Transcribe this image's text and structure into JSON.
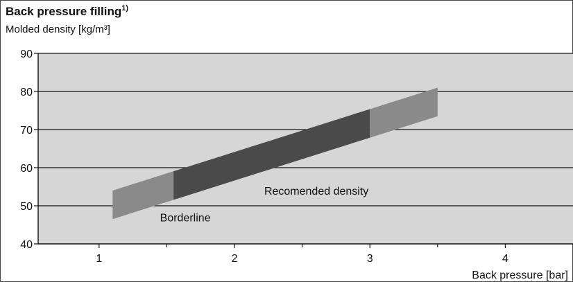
{
  "chart_data": {
    "type": "area",
    "title": "Back pressure filling",
    "title_superscript": "1)",
    "ylabel": "Molded density [kg/m³]",
    "xlabel": "Back pressure [bar]",
    "xlim": [
      0.55,
      4.5
    ],
    "ylim": [
      40,
      90
    ],
    "x_ticks": [
      1,
      2,
      3,
      4
    ],
    "y_ticks": [
      40,
      50,
      60,
      70,
      80,
      90
    ],
    "grid": "horizontal",
    "background_color": "#d6d6d6",
    "band": {
      "x": [
        1.1,
        3.5
      ],
      "upper": [
        54,
        81
      ],
      "lower": [
        46.5,
        73.5
      ]
    },
    "regions": [
      {
        "name": "Borderline",
        "x_range": [
          1.1,
          1.55
        ],
        "color": "#8a8a8a"
      },
      {
        "name": "Recomended density",
        "x_range": [
          1.55,
          3.0
        ],
        "color": "#4a4a4a"
      },
      {
        "name": "Borderline",
        "x_range": [
          3.0,
          3.5
        ],
        "color": "#8a8a8a"
      }
    ],
    "annotations": [
      {
        "text": "Recomended density",
        "x": 2.22,
        "y": 54
      },
      {
        "text": "Borderline",
        "x": 1.45,
        "y": 47
      }
    ]
  }
}
